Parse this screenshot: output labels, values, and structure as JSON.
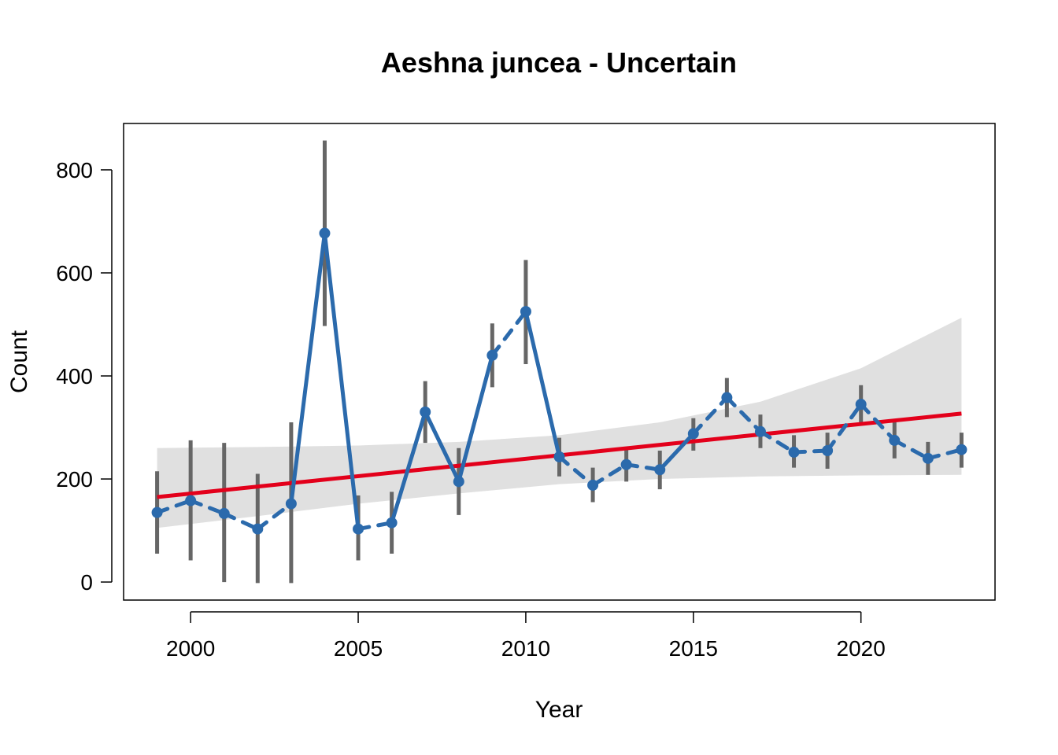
{
  "colors": {
    "band": "#e0e0e0",
    "trend": "#e3001b",
    "series": "#2b6aac",
    "errorbar": "#666666",
    "axis": "#000000"
  },
  "chart_data": {
    "type": "line",
    "title": "Aeshna juncea - Uncertain",
    "xlabel": "Year",
    "ylabel": "Count",
    "xlim": [
      1998,
      2024
    ],
    "ylim": [
      -35,
      890
    ],
    "x_ticks": [
      2000,
      2005,
      2010,
      2015,
      2020
    ],
    "y_ticks": [
      0,
      200,
      400,
      600,
      800
    ],
    "grid": false,
    "legend": "none",
    "series": [
      {
        "x": [
          1999,
          2000,
          2001,
          2002,
          2003,
          2004,
          2005,
          2006,
          2007,
          2008,
          2009,
          2010,
          2011,
          2012,
          2013,
          2014,
          2015,
          2016,
          2017,
          2018,
          2019,
          2020,
          2021,
          2022,
          2023
        ],
        "y": [
          135,
          158,
          133,
          103,
          152,
          677,
          103,
          115,
          330,
          195,
          440,
          525,
          243,
          188,
          228,
          218,
          288,
          358,
          292,
          252,
          255,
          345,
          275,
          240,
          257
        ],
        "lower": [
          55,
          42,
          0,
          -2,
          -2,
          497,
          42,
          55,
          270,
          130,
          378,
          423,
          205,
          155,
          195,
          180,
          255,
          320,
          260,
          222,
          220,
          308,
          240,
          208,
          222
        ],
        "upper": [
          215,
          275,
          270,
          210,
          310,
          857,
          168,
          175,
          390,
          260,
          502,
          625,
          280,
          222,
          262,
          255,
          318,
          396,
          325,
          285,
          290,
          382,
          310,
          272,
          290
        ],
        "segment_style": [
          "dashed",
          "dashed",
          "dashed",
          "dashed",
          "solid",
          "solid",
          "dashed",
          "solid",
          "solid",
          "solid",
          "dashed",
          "solid",
          "dashed",
          "dashed",
          "dashed",
          "solid",
          "dashed",
          "dashed",
          "dashed",
          "dashed",
          "dashed",
          "dashed",
          "dashed",
          "dashed"
        ]
      }
    ],
    "trend": {
      "x": [
        1999,
        2023
      ],
      "y_start": 165,
      "y_end": 327
    },
    "trend_band": {
      "x": [
        1999,
        2002,
        2005,
        2008,
        2011,
        2014,
        2017,
        2020,
        2023
      ],
      "lower": [
        105,
        128,
        152,
        172,
        190,
        200,
        205,
        207,
        208
      ],
      "upper": [
        260,
        262,
        265,
        272,
        285,
        310,
        350,
        415,
        513
      ]
    }
  }
}
